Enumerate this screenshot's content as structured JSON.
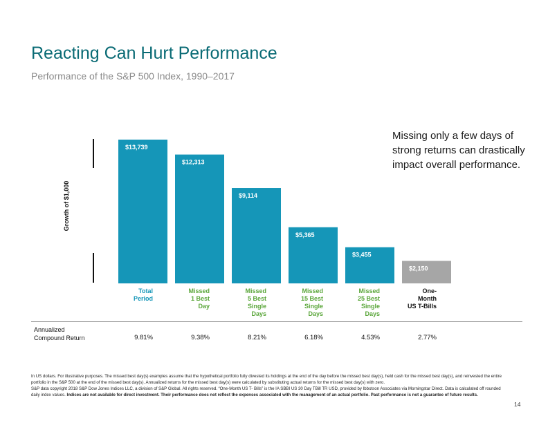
{
  "header": {
    "title": "Reacting Can Hurt Performance",
    "subtitle": "Performance of the S&P 500 Index, 1990–2017"
  },
  "callout": "Missing only a few days of strong returns can drastically impact overall performance.",
  "chart_data": {
    "type": "bar",
    "ylabel": "Growth of $1,000",
    "categories": [
      "Total\nPeriod",
      "Missed\n1 Best\nDay",
      "Missed\n5 Best\nSingle\nDays",
      "Missed\n15 Best\nSingle\nDays",
      "Missed\n25 Best\nSingle\nDays",
      "One-\nMonth\nUS T-Bills"
    ],
    "values": [
      13739,
      12313,
      9114,
      5365,
      3455,
      2150
    ],
    "data_labels": [
      "$13,739",
      "$12,313",
      "$9,114",
      "$5,365",
      "$3,455",
      "$2,150"
    ],
    "colors": [
      "#1596b8",
      "#1596b8",
      "#1596b8",
      "#1596b8",
      "#1596b8",
      "#a6a6a6"
    ],
    "category_colors": [
      "#1596b8",
      "#5aa63a",
      "#5aa63a",
      "#5aa63a",
      "#5aa63a",
      "#111111"
    ],
    "ylim": [
      0,
      13739
    ],
    "grid": false,
    "legend": "none"
  },
  "returns": {
    "label": "Annualized\nCompound Return",
    "values": [
      "9.81%",
      "9.38%",
      "8.21%",
      "6.18%",
      "4.53%",
      "2.77%"
    ]
  },
  "footnote": {
    "line1": "In US dollars. For illustrative purposes. The missed best day(s) examples assume that the hypothetical portfolio fully divested its holdings at the end of the day before the missed best day(s), held cash for the missed best day(s), and reinvested the entire portfolio in the S&P 500 at the end of the missed best day(s). Annualized returns for the missed best day(s) were calculated by substituting actual returns for the missed best day(s) with zero.",
    "line2": "S&P data copyright 2018 S&P Dow Jones Indices LLC, a division of S&P Global. All rights reserved. “One-Month US T- Bills” is the IA SBBI US 30 Day TBill TR USD, provided by Ibbotson Associates via Morningstar Direct. Data is calculated off rounded daily index values.",
    "line2_bold": "Indices are not available for direct investment. Their performance does not reflect the expenses associated with the management of an actual portfolio. Past performance is not a guarantee of future results."
  },
  "page_number": "14"
}
